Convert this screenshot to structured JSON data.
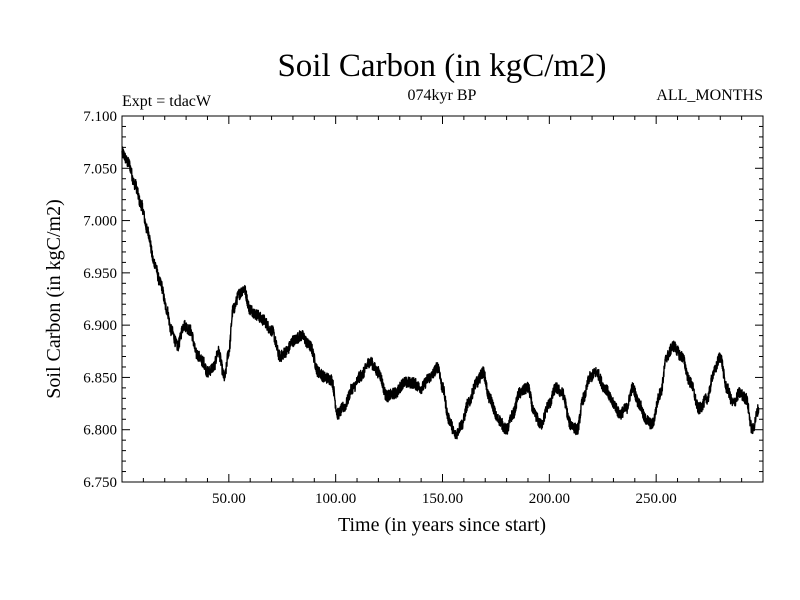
{
  "chart_data": {
    "type": "line",
    "title": "Soil Carbon (in kgC/m2)",
    "subtitle": "074kyr BP",
    "annotation_left": "Expt = tdacW",
    "annotation_right": "ALL_MONTHS",
    "xlabel": "Time (in years since start)",
    "ylabel": "Soil Carbon (in kgC/m2)",
    "xlim": [
      0,
      300
    ],
    "ylim": [
      6.75,
      7.1
    ],
    "xticks": [
      50,
      100,
      150,
      200,
      250
    ],
    "xtick_labels": [
      "50.00",
      "100.00",
      "150.00",
      "200.00",
      "250.00"
    ],
    "yticks": [
      6.75,
      6.8,
      6.85,
      6.9,
      6.95,
      7.0,
      7.05,
      7.1
    ],
    "ytick_labels": [
      "6.750",
      "6.800",
      "6.850",
      "6.900",
      "6.950",
      "7.000",
      "7.050",
      "7.100"
    ],
    "series": [
      {
        "name": "Soil Carbon",
        "x": [
          0,
          3,
          6,
          9,
          12,
          15,
          18,
          21,
          23,
          26,
          29,
          32,
          35,
          38,
          40,
          43,
          45,
          48,
          50,
          52,
          55,
          57,
          60,
          63,
          66,
          70,
          74,
          77,
          80,
          84,
          88,
          92,
          95,
          98,
          101,
          104,
          108,
          112,
          116,
          120,
          124,
          128,
          132,
          136,
          140,
          144,
          148,
          150,
          153,
          156,
          159,
          162,
          166,
          169,
          172,
          176,
          180,
          183,
          186,
          190,
          193,
          196,
          200,
          203,
          206,
          210,
          213,
          216,
          219,
          222,
          226,
          230,
          233,
          236,
          239,
          242,
          245,
          248,
          252,
          255,
          258,
          262,
          266,
          270,
          274,
          277,
          280,
          283,
          286,
          289,
          292,
          295,
          298
        ],
        "values": [
          7.065,
          7.055,
          7.035,
          7.015,
          6.99,
          6.96,
          6.94,
          6.915,
          6.895,
          6.88,
          6.9,
          6.895,
          6.872,
          6.865,
          6.855,
          6.86,
          6.875,
          6.85,
          6.875,
          6.915,
          6.93,
          6.935,
          6.915,
          6.91,
          6.905,
          6.895,
          6.87,
          6.875,
          6.885,
          6.89,
          6.88,
          6.855,
          6.85,
          6.848,
          6.815,
          6.822,
          6.84,
          6.852,
          6.865,
          6.855,
          6.832,
          6.835,
          6.845,
          6.845,
          6.84,
          6.85,
          6.86,
          6.84,
          6.81,
          6.795,
          6.805,
          6.825,
          6.845,
          6.855,
          6.83,
          6.81,
          6.8,
          6.815,
          6.835,
          6.84,
          6.815,
          6.805,
          6.825,
          6.84,
          6.835,
          6.805,
          6.8,
          6.83,
          6.85,
          6.855,
          6.84,
          6.825,
          6.815,
          6.82,
          6.84,
          6.825,
          6.81,
          6.805,
          6.835,
          6.87,
          6.88,
          6.87,
          6.845,
          6.82,
          6.83,
          6.855,
          6.87,
          6.84,
          6.825,
          6.835,
          6.83,
          6.8,
          6.82
        ]
      }
    ]
  }
}
